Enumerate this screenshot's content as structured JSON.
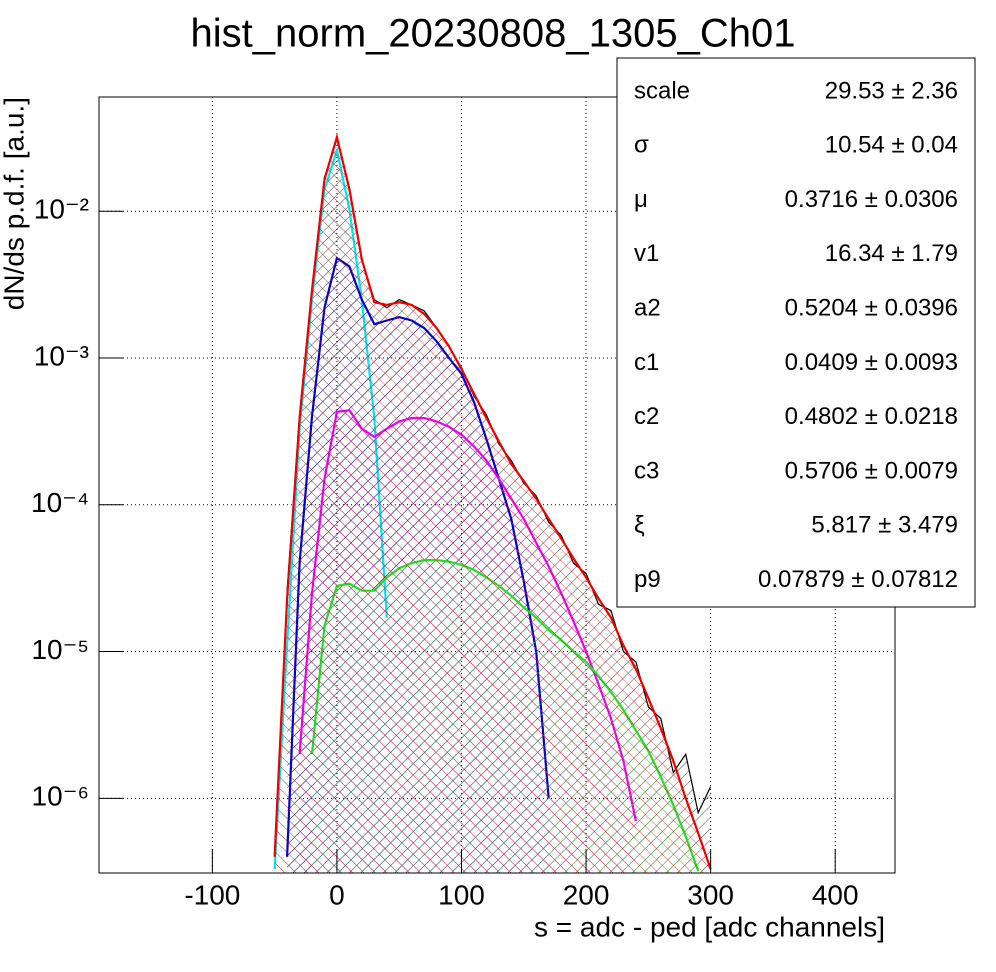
{
  "chart_data": {
    "type": "line",
    "title": "hist_norm_20230808_1305_Ch01",
    "xlabel": "s = adc - ped [adc channels]",
    "ylabel": "dN/ds p.d.f. [a.u.]",
    "ylog": true,
    "grid": true,
    "xlim": [
      -191,
      448
    ],
    "ylim": [
      3.1e-07,
      0.06
    ],
    "xticks": [
      -100,
      0,
      100,
      200,
      300,
      400
    ],
    "yticks": [
      {
        "value": 1e-06,
        "label": "10⁻⁶"
      },
      {
        "value": 1e-05,
        "label": "10⁻⁵"
      },
      {
        "value": 0.0001,
        "label": "10⁻⁴"
      },
      {
        "value": 0.001,
        "label": "10⁻³"
      },
      {
        "value": 0.01,
        "label": "10⁻²"
      }
    ],
    "x": [
      -50,
      -40,
      -30,
      -20,
      -10,
      0,
      10,
      20,
      30,
      40,
      50,
      60,
      70,
      80,
      90,
      100,
      110,
      120,
      130,
      140,
      150,
      160,
      170,
      180,
      190,
      200,
      210,
      220,
      230,
      240,
      250,
      260,
      270,
      280,
      290,
      300
    ],
    "series": [
      {
        "color": "#000000",
        "values": [
          null,
          2.6e-05,
          0.00041,
          0.003,
          0.017,
          0.031,
          0.0145,
          0.0046,
          0.0025,
          0.0022,
          0.0025,
          0.0023,
          0.0021,
          0.0016,
          0.0012,
          0.00086,
          0.00055,
          0.00041,
          0.00026,
          0.0002,
          0.00014,
          0.000115,
          7.6e-05,
          6.2e-05,
          4e-05,
          3.4e-05,
          2.1e-05,
          1.9e-05,
          1e-05,
          8.5e-06,
          4.2e-06,
          3.5e-06,
          1.5e-06,
          2e-06,
          8e-07,
          1.2e-06
        ]
      },
      {
        "color": "#00e5ee",
        "values": [
          3.3e-07,
          1.1e-05,
          0.00033,
          0.0025,
          0.014,
          0.026,
          0.0103,
          0.0025,
          0.00039,
          1.7e-05,
          null,
          null,
          null,
          null,
          null,
          null,
          null,
          null,
          null,
          null,
          null,
          null,
          null,
          null,
          null,
          null,
          null,
          null,
          null,
          null,
          null,
          null,
          null,
          null,
          null,
          null
        ]
      },
      {
        "color": "#0000cc",
        "values": [
          null,
          4e-07,
          4e-05,
          0.0004,
          0.0022,
          0.0048,
          0.0042,
          0.0025,
          0.0017,
          0.0018,
          0.0019,
          0.0018,
          0.0016,
          0.0013,
          0.001,
          0.00078,
          0.0005,
          0.00028,
          0.00015,
          8e-05,
          3e-05,
          1e-05,
          1e-06,
          null,
          null,
          null,
          null,
          null,
          null,
          null,
          null,
          null,
          null,
          null,
          null,
          null
        ]
      },
      {
        "color": "#ee00ee",
        "values": [
          null,
          null,
          2e-06,
          2.5e-05,
          0.00015,
          0.00043,
          0.00044,
          0.00033,
          0.00029,
          0.00033,
          0.00037,
          0.00039,
          0.00039,
          0.00037,
          0.00034,
          0.0003,
          0.00025,
          0.0002,
          0.00015,
          0.00011,
          8e-05,
          5.5e-05,
          3.8e-05,
          2.5e-05,
          1.6e-05,
          1e-05,
          6e-06,
          3.5e-06,
          1.8e-06,
          7e-07,
          null,
          null,
          null,
          null,
          null,
          null
        ]
      },
      {
        "color": "#22dd22",
        "values": [
          null,
          null,
          null,
          2e-06,
          1.5e-05,
          2.8e-05,
          2.9e-05,
          2.6e-05,
          2.6e-05,
          3.2e-05,
          3.7e-05,
          4e-05,
          4.2e-05,
          4.2e-05,
          4.1e-05,
          3.9e-05,
          3.6e-05,
          3.2e-05,
          2.8e-05,
          2.4e-05,
          2e-05,
          1.7e-05,
          1.4e-05,
          1.2e-05,
          1e-05,
          8.5e-06,
          6.8e-06,
          5.3e-06,
          4e-06,
          2.9e-06,
          2.1e-06,
          1.4e-06,
          9e-07,
          5.5e-07,
          3.2e-07,
          null
        ]
      },
      {
        "color": "#ee0000",
        "values": [
          4e-07,
          2.3e-05,
          0.00039,
          0.0029,
          0.0165,
          0.032,
          0.0141,
          0.0047,
          0.0024,
          0.0023,
          0.0024,
          0.0023,
          0.002,
          0.0016,
          0.0012,
          0.00084,
          0.00057,
          0.00039,
          0.00027,
          0.00019,
          0.000145,
          0.00011,
          8e-05,
          5.9e-05,
          4.3e-05,
          3.2e-05,
          2.3e-05,
          1.7e-05,
          1.1e-05,
          7.6e-06,
          4.8e-06,
          3e-06,
          1.8e-06,
          1e-06,
          5.8e-07,
          3.3e-07
        ]
      }
    ],
    "stats": [
      {
        "name": "scale",
        "value": "29.53 ± 2.36"
      },
      {
        "name": "σ",
        "value": "10.54 ± 0.04"
      },
      {
        "name": "μ",
        "value": "0.3716 ± 0.0306"
      },
      {
        "name": "v1",
        "value": "16.34 ± 1.79"
      },
      {
        "name": "a2",
        "value": "0.5204 ± 0.0396"
      },
      {
        "name": "c1",
        "value": "0.0409 ± 0.0093"
      },
      {
        "name": "c2",
        "value": "0.4802 ± 0.0218"
      },
      {
        "name": "c3",
        "value": "0.5706 ± 0.0079"
      },
      {
        "name": "ξ",
        "value": "5.817 ± 3.479"
      },
      {
        "name": "p9",
        "value": "0.07879 ± 0.07812"
      }
    ]
  }
}
